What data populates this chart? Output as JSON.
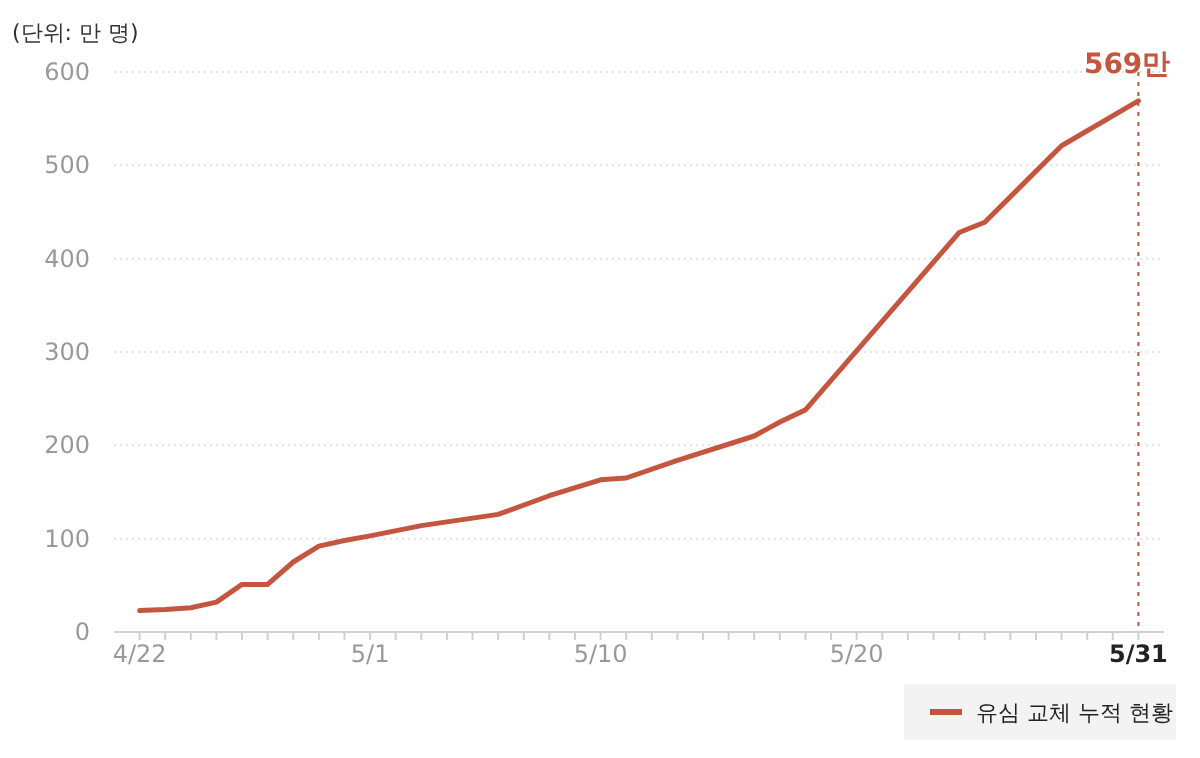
{
  "chart_data": {
    "type": "line",
    "ylabel": "(단위: 만 명)",
    "x": [
      "--04-22",
      "--04-23",
      "--04-24",
      "--04-25",
      "--04-26",
      "--04-27",
      "--04-28",
      "--04-29",
      "--04-30",
      "--05-01",
      "--05-03",
      "--05-06",
      "--05-08",
      "--05-10",
      "--05-11",
      "--05-13",
      "--05-16",
      "--05-17",
      "--05-18",
      "--05-24",
      "--05-25",
      "--05-28",
      "--05-31"
    ],
    "series": [
      {
        "name": "유심 교체 누적 현황",
        "color": "#c4553e",
        "values": [
          23,
          24,
          26,
          32,
          51,
          51,
          75,
          92,
          98,
          103,
          114,
          126,
          146,
          163,
          165,
          184,
          210,
          225,
          238,
          428,
          439,
          521,
          569
        ]
      }
    ],
    "xlim": [
      "--04-21",
      "--06-01"
    ],
    "xticks": [
      {
        "value": "--04-22",
        "label": "4/22"
      },
      {
        "value": "--04-23",
        "label": null
      },
      {
        "value": "--04-24",
        "label": null
      },
      {
        "value": "--04-25",
        "label": null
      },
      {
        "value": "--04-26",
        "label": null
      },
      {
        "value": "--04-27",
        "label": null
      },
      {
        "value": "--04-28",
        "label": null
      },
      {
        "value": "--04-29",
        "label": null
      },
      {
        "value": "--04-30",
        "label": null
      },
      {
        "value": "--05-01",
        "label": "5/1"
      },
      {
        "value": "--05-02",
        "label": null
      },
      {
        "value": "--05-03",
        "label": null
      },
      {
        "value": "--05-04",
        "label": null
      },
      {
        "value": "--05-05",
        "label": null
      },
      {
        "value": "--05-06",
        "label": null
      },
      {
        "value": "--05-07",
        "label": null
      },
      {
        "value": "--05-08",
        "label": null
      },
      {
        "value": "--05-09",
        "label": null
      },
      {
        "value": "--05-10",
        "label": "5/10"
      },
      {
        "value": "--05-11",
        "label": null
      },
      {
        "value": "--05-12",
        "label": null
      },
      {
        "value": "--05-13",
        "label": null
      },
      {
        "value": "--05-14",
        "label": null
      },
      {
        "value": "--05-15",
        "label": null
      },
      {
        "value": "--05-16",
        "label": null
      },
      {
        "value": "--05-17",
        "label": null
      },
      {
        "value": "--05-18",
        "label": null
      },
      {
        "value": "--05-19",
        "label": null
      },
      {
        "value": "--05-20",
        "label": "5/20"
      },
      {
        "value": "--05-21",
        "label": null
      },
      {
        "value": "--05-22",
        "label": null
      },
      {
        "value": "--05-23",
        "label": null
      },
      {
        "value": "--05-24",
        "label": null
      },
      {
        "value": "--05-25",
        "label": null
      },
      {
        "value": "--05-26",
        "label": null
      },
      {
        "value": "--05-27",
        "label": null
      },
      {
        "value": "--05-28",
        "label": null
      },
      {
        "value": "--05-29",
        "label": null
      },
      {
        "value": "--05-30",
        "label": null
      },
      {
        "value": "--05-31",
        "label": "5/31"
      }
    ],
    "ylim": [
      0,
      600
    ],
    "yticks": [
      0,
      100,
      200,
      300,
      400,
      500,
      600
    ],
    "grid": "y",
    "legend": "bottom right",
    "marker": "none",
    "line_style": "solid",
    "ref_lines": [
      {
        "axis": "x",
        "value": "--05-31",
        "color": "#c4553e",
        "line_style": "dotted"
      }
    ],
    "annotations": [
      {
        "text": "569만",
        "x": "--05-31",
        "y": 569
      }
    ]
  }
}
